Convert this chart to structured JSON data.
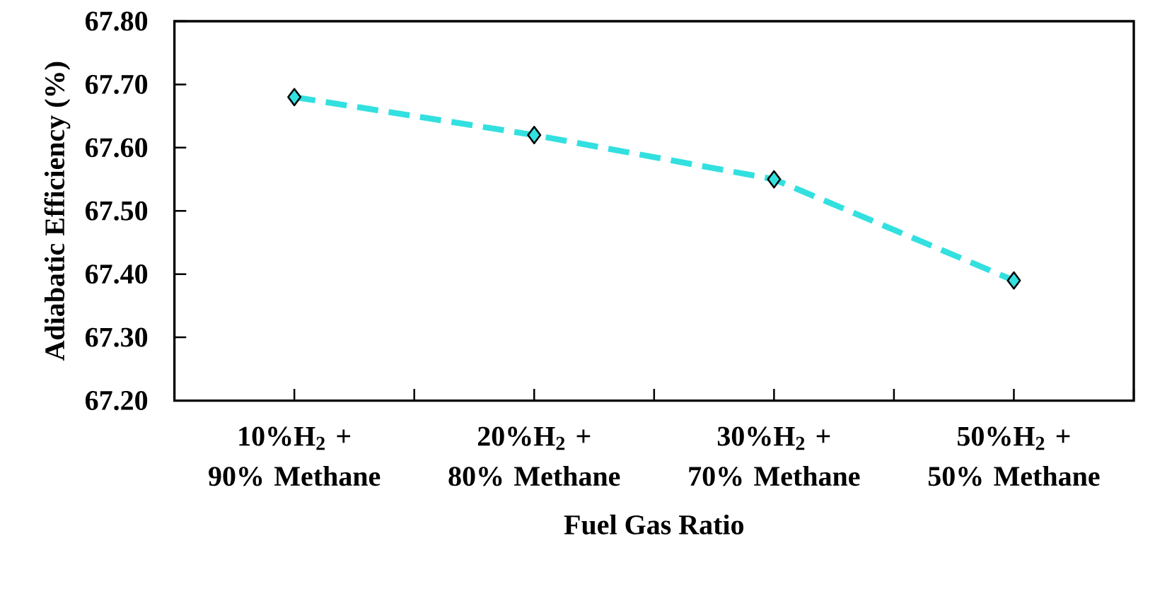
{
  "chart_data": {
    "type": "line",
    "xlabel": "Fuel Gas Ratio",
    "ylabel": "Adiabatic Efficiency (%)",
    "categories": [
      "10%H$_{2}$ + 90% Methane",
      "20%H$_{2}$ + 80% Methane",
      "30%H$_{2}$ + 70% Methane",
      "50%H$_{2}$ + 50% Methane"
    ],
    "series": [
      {
        "color": "#33e0e0",
        "values": [
          67.68,
          67.62,
          67.55,
          67.39
        ]
      }
    ],
    "ylim": [
      67.2,
      67.8
    ],
    "yticks": [
      {
        "value": 67.2,
        "label": "67.20"
      },
      {
        "value": 67.3,
        "label": "67.30"
      },
      {
        "value": 67.4,
        "label": "67.40"
      },
      {
        "value": 67.5,
        "label": "67.50"
      },
      {
        "value": 67.6,
        "label": "67.60"
      },
      {
        "value": 67.7,
        "label": "67.70"
      },
      {
        "value": 67.8,
        "label": "67.80"
      }
    ],
    "marker": "diamond",
    "line_style": "dashed",
    "grid": false
  }
}
